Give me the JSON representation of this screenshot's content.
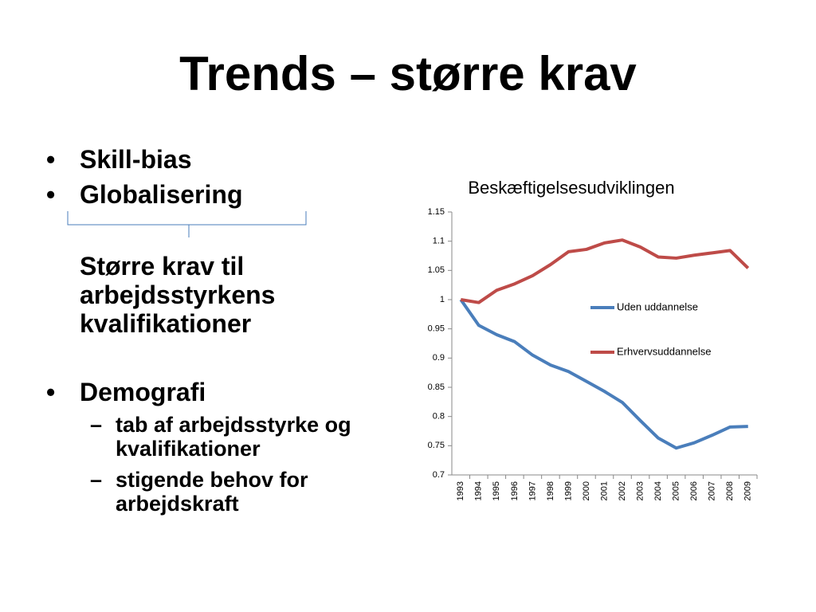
{
  "title": "Trends – større krav",
  "bullets": [
    "Skill-bias",
    "Globalisering"
  ],
  "conclusion": "Større krav til arbejdsstyrkens kvalifikationer",
  "demography": {
    "label": "Demografi",
    "items": [
      "tab af arbejdsstyrke og kvalifikationer",
      "stigende behov for arbejdskraft"
    ]
  },
  "chart_data": {
    "type": "line",
    "title": "Beskæftigelsesudviklingen",
    "categories": [
      "1993",
      "1994",
      "1995",
      "1996",
      "1997",
      "1998",
      "1999",
      "2000",
      "2001",
      "2002",
      "2003",
      "2004",
      "2005",
      "2006",
      "2007",
      "2008",
      "2009"
    ],
    "series": [
      {
        "name": "Uden uddannelse",
        "color": "#4a7ebb",
        "values": [
          1.0,
          0.956,
          0.94,
          0.928,
          0.905,
          0.888,
          0.877,
          0.86,
          0.843,
          0.824,
          0.793,
          0.763,
          0.746,
          0.755,
          0.768,
          0.782,
          0.783
        ]
      },
      {
        "name": "Erhvervsuddannelse",
        "color": "#be4b48",
        "values": [
          1.0,
          0.995,
          1.016,
          1.027,
          1.041,
          1.06,
          1.082,
          1.086,
          1.097,
          1.102,
          1.09,
          1.073,
          1.071,
          1.076,
          1.08,
          1.084,
          1.054
        ]
      }
    ],
    "ylim": [
      0.7,
      1.15
    ],
    "yticks": [
      0.7,
      0.75,
      0.8,
      0.85,
      0.9,
      0.95,
      1,
      1.05,
      1.1,
      1.15
    ],
    "grid": false,
    "legend": "right"
  }
}
